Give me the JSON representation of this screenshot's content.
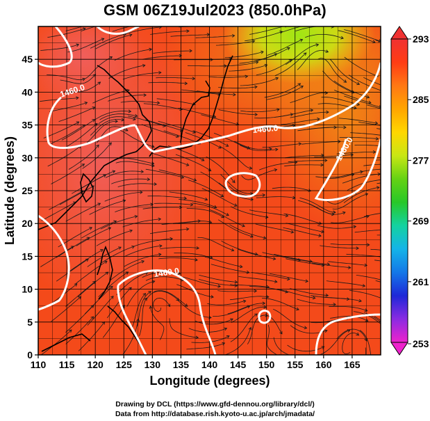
{
  "title": "GSM 06Z19Jul2023 (850.0hPa)",
  "map": {
    "x_axis": {
      "label": "Longitude (degrees)",
      "range": [
        110,
        170
      ],
      "ticks": [
        110,
        115,
        120,
        125,
        130,
        135,
        140,
        145,
        150,
        155,
        160,
        165
      ],
      "tick_labels": [
        "110",
        "115",
        "120",
        "125",
        "130",
        "135",
        "140",
        "145",
        "150",
        "155",
        "160",
        "165"
      ]
    },
    "y_axis": {
      "label": "Latitude  (degrees)",
      "range": [
        0,
        50
      ],
      "ticks": [
        0,
        5,
        10,
        15,
        20,
        25,
        30,
        35,
        40,
        45
      ],
      "tick_labels": [
        "0",
        "5",
        "10",
        "15",
        "20",
        "25",
        "30",
        "35",
        "40",
        "45"
      ]
    },
    "contour_labels": [
      "1460.0",
      "1460.0",
      "1460.0",
      "1460.0"
    ],
    "colorbar": {
      "range": [
        253,
        293
      ],
      "tick_values": [
        253,
        261,
        269,
        277,
        285,
        293
      ],
      "tick_labels": [
        "253",
        "261",
        "269",
        "277",
        "285",
        "293"
      ],
      "colors": [
        "#ee22cc",
        "#8a2be2",
        "#1e28d8",
        "#1478e8",
        "#14b4e8",
        "#14d2a0",
        "#28c828",
        "#64d214",
        "#c8e614",
        "#ffd700",
        "#ffa500",
        "#ff7814",
        "#ff3c14",
        "#f03232"
      ]
    },
    "overlay_colors": {
      "land_outline": "#000000",
      "streamlines": "#1a1a1a",
      "contours": "#ffffff",
      "grid": "#000000"
    }
  },
  "credits": [
    "Drawing by DCL (https://www.gfd-dennou.org/library/dcl/)",
    "Data from http://database.rish.kyoto-u.ac.jp/arch/jmadata/"
  ]
}
